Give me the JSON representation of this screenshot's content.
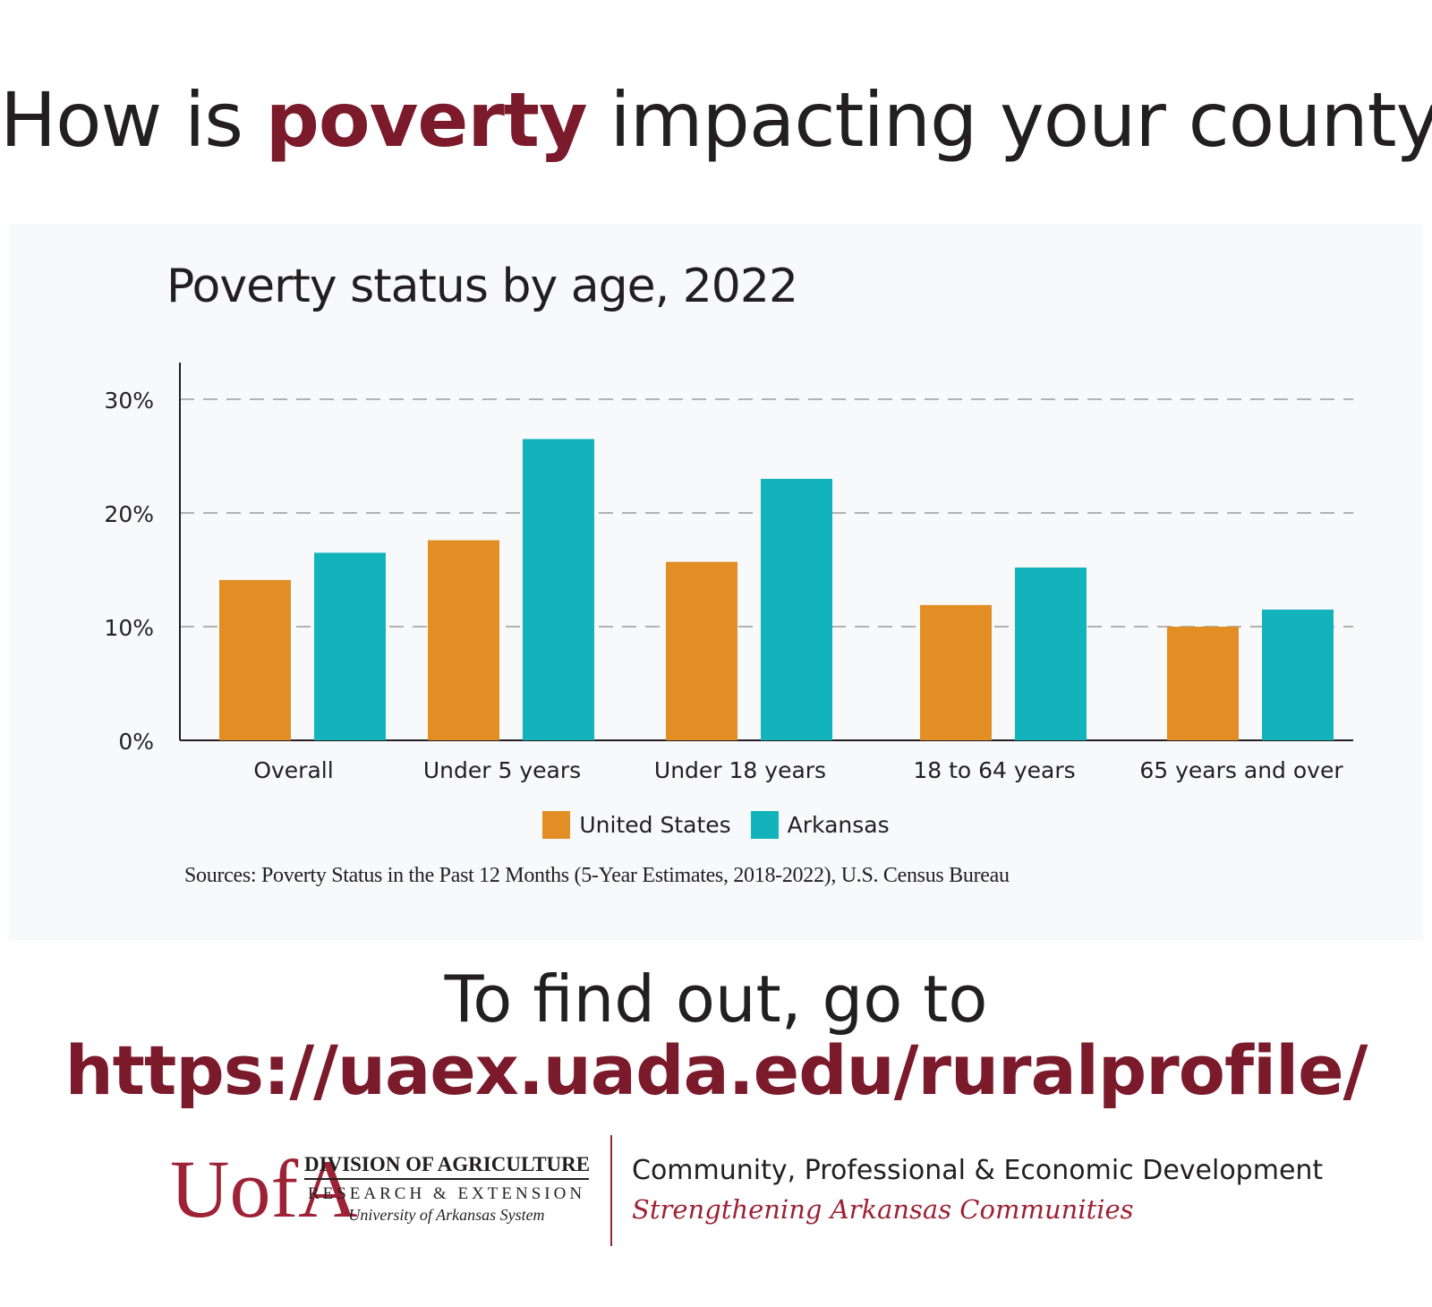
{
  "headline": {
    "before": "How is ",
    "accent": "poverty",
    "after": " impacting your county?"
  },
  "colors": {
    "accent": "#7b1a2a",
    "us": "#e28e25",
    "arkansas": "#13b3bc",
    "grid": "#9b9b9b",
    "axis": "#231f20"
  },
  "chart_data": {
    "type": "bar",
    "title": "Poverty status by age, 2022",
    "categories": [
      "Overall",
      "Under 5 years",
      "Under 18 years",
      "18 to 64 years",
      "65 years and over"
    ],
    "series": [
      {
        "name": "United States",
        "values": [
          14.1,
          17.6,
          15.7,
          11.9,
          10.0
        ]
      },
      {
        "name": "Arkansas",
        "values": [
          16.5,
          26.5,
          23.0,
          15.2,
          11.5
        ]
      }
    ],
    "y_ticks": [
      0,
      10,
      20,
      30
    ],
    "y_tick_labels": [
      "0%",
      "10%",
      "20%",
      "30%"
    ],
    "ylim": [
      0,
      33
    ],
    "xlabel": "",
    "ylabel": "",
    "grid": true,
    "legend_position": "bottom-center"
  },
  "sources": "Sources: Poverty Status in the Past 12 Months (5-Year Estimates, 2018-2022), U.S. Census Bureau",
  "cta": {
    "line1": "To find out, go to",
    "url": "https://uaex.uada.edu/ruralprofile/"
  },
  "footer": {
    "logo_mark": "UofA",
    "division": "DIVISION OF AGRICULTURE",
    "research": "RESEARCH & EXTENSION",
    "system": "University of Arkansas System",
    "department": "Community, Professional & Economic Development",
    "tagline": "Strengthening Arkansas Communities"
  }
}
